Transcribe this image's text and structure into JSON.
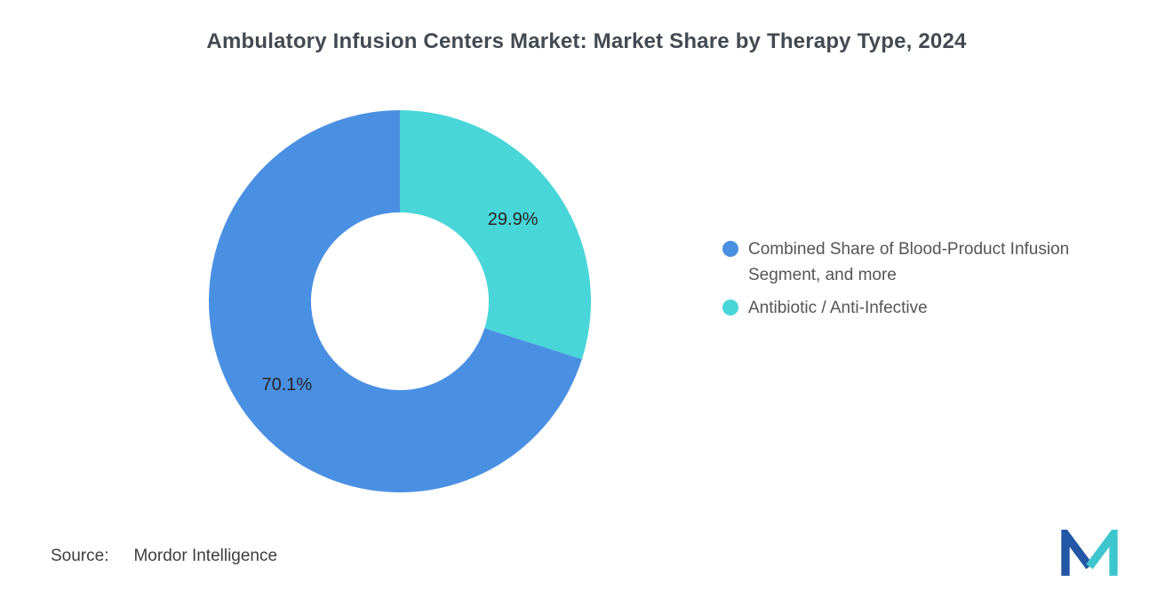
{
  "chart_data": {
    "type": "pie",
    "donut": true,
    "title": "Ambulatory Infusion Centers Market: Market Share by Therapy Type, 2024",
    "segments": [
      {
        "label": "Combined Share of Blood-Product Infusion Segment, and more",
        "value": 70.1,
        "color": "#4A90E2"
      },
      {
        "label": "Antibiotic / Anti-Infective",
        "value": 29.9,
        "color": "#49D6D9"
      }
    ],
    "data_labels": [
      "70.1%",
      "29.9%"
    ],
    "label_format": "{value}%",
    "start_angle_deg": 90,
    "direction": "counterclockwise",
    "inner_radius_ratio": 0.465,
    "legend_position": "right",
    "total": 100
  },
  "source": {
    "label": "Source:",
    "value": "Mordor Intelligence"
  },
  "branding": {
    "logo_name": "mordor-intelligence-logo",
    "logo_blue": "#2157A4",
    "logo_teal": "#3EC6CE"
  }
}
